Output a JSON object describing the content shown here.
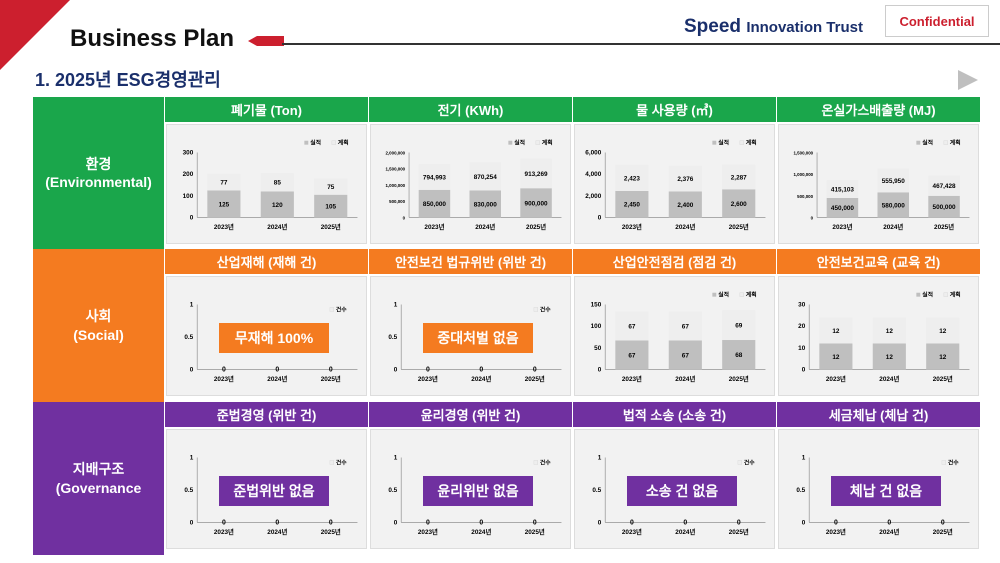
{
  "header": {
    "title": "Business Plan",
    "brand_main": "Speed",
    "brand_sub": "Innovation Trust",
    "confidential": "Confidential",
    "subtitle": "1. 2025년 ESG경영관리"
  },
  "colors": {
    "env": "#1aa64b",
    "soc": "#f47b20",
    "gov": "#7030a0",
    "actual": "#bfbfbf",
    "plan": "#eeeeee",
    "accent": "#cc1f2e"
  },
  "sections": [
    {
      "name": "환경",
      "en": "(Environmental)"
    },
    {
      "name": "사회",
      "en": "(Social)"
    },
    {
      "name": "지배구조",
      "en": "(Governance"
    }
  ],
  "headers": [
    [
      "폐기물 (Ton)",
      "전기 (KWh)",
      "물 사용량 (㎥)",
      "온실가스배출량  (MJ)"
    ],
    [
      "산업재해 (재해 건)",
      "안전보건 법규위반 (위반 건)",
      "산업안전점검 (점검 건)",
      "안전보건교육 (교육 건)"
    ],
    [
      "준법경영 (위반 건)",
      "윤리경영 (위반 건)",
      "법적 소송 (소송 건)",
      "세금체납 (체납 건)"
    ]
  ],
  "chart_data": [
    {
      "type": "bar",
      "stacked": true,
      "categories": [
        "2023년",
        "2024년",
        "2025년"
      ],
      "series": [
        {
          "name": "실적",
          "values": [
            125,
            120,
            105
          ],
          "labels": [
            "125",
            "120",
            "105"
          ]
        },
        {
          "name": "계획",
          "values": [
            77,
            85,
            75
          ],
          "labels": [
            "77",
            "85",
            "75"
          ]
        }
      ],
      "ylim": [
        0,
        300
      ],
      "yticks": [
        "0",
        "100",
        "200",
        "300"
      ],
      "legend": "top-right"
    },
    {
      "type": "bar",
      "stacked": true,
      "categories": [
        "2023년",
        "2024년",
        "2025년"
      ],
      "series": [
        {
          "name": "실적",
          "values": [
            850000,
            830000,
            900000
          ],
          "labels": [
            "850,000",
            "830,000",
            "900,000"
          ]
        },
        {
          "name": "계획",
          "values": [
            794993,
            870254,
            913269
          ],
          "labels": [
            "794,993",
            "870,254",
            "913,269"
          ]
        }
      ],
      "ylim": [
        0,
        2000000
      ],
      "yticks": [
        "0",
        "500,000",
        "1,000,000",
        "1,500,000",
        "2,000,000"
      ],
      "legend": "top-right"
    },
    {
      "type": "bar",
      "stacked": true,
      "categories": [
        "2023년",
        "2024년",
        "2025년"
      ],
      "series": [
        {
          "name": "실적",
          "values": [
            2450,
            2400,
            2600
          ],
          "labels": [
            "2,450",
            "2,400",
            "2,600"
          ]
        },
        {
          "name": "계획",
          "values": [
            2423,
            2376,
            2287
          ],
          "labels": [
            "2,423",
            "2,376",
            "2,287"
          ]
        }
      ],
      "ylim": [
        0,
        6000
      ],
      "yticks": [
        "0",
        "2,000",
        "4,000",
        "6,000"
      ],
      "legend": "top-right"
    },
    {
      "type": "bar",
      "stacked": true,
      "categories": [
        "2023년",
        "2024년",
        "2025년"
      ],
      "series": [
        {
          "name": "실적",
          "values": [
            450000,
            580000,
            500000
          ],
          "labels": [
            "450,000",
            "580,000",
            "500,000"
          ]
        },
        {
          "name": "계획",
          "values": [
            415103,
            555950,
            467428
          ],
          "labels": [
            "415,103",
            "555,950",
            "467,428"
          ]
        }
      ],
      "ylim": [
        0,
        1500000
      ],
      "yticks": [
        "0",
        "500,000",
        "1,000,000",
        "1,500,000"
      ],
      "legend": "top-right"
    },
    {
      "type": "bar",
      "categories": [
        "2023년",
        "2024년",
        "2025년"
      ],
      "series": [
        {
          "name": "건수",
          "values": [
            0,
            0,
            0
          ],
          "labels": [
            "0",
            "0",
            "0"
          ]
        }
      ],
      "ylim": [
        0,
        1
      ],
      "yticks": [
        "0",
        "0.5",
        "1"
      ],
      "legend": "top-right",
      "note": "무재해 100%"
    },
    {
      "type": "bar",
      "categories": [
        "2023년",
        "2024년",
        "2025년"
      ],
      "series": [
        {
          "name": "건수",
          "values": [
            0,
            0,
            0
          ],
          "labels": [
            "0",
            "0",
            "0"
          ]
        }
      ],
      "ylim": [
        0,
        1
      ],
      "yticks": [
        "0",
        "0.5",
        "1"
      ],
      "legend": "top-right",
      "note": "중대처벌 없음"
    },
    {
      "type": "bar",
      "stacked": true,
      "categories": [
        "2023년",
        "2024년",
        "2025년"
      ],
      "series": [
        {
          "name": "실적",
          "values": [
            67,
            67,
            68
          ],
          "labels": [
            "67",
            "67",
            "68"
          ]
        },
        {
          "name": "계획",
          "values": [
            67,
            67,
            69
          ],
          "labels": [
            "67",
            "67",
            "69"
          ]
        }
      ],
      "ylim": [
        0,
        150
      ],
      "yticks": [
        "0",
        "50",
        "100",
        "150"
      ],
      "legend": "top-right"
    },
    {
      "type": "bar",
      "stacked": true,
      "categories": [
        "2023년",
        "2024년",
        "2025년"
      ],
      "series": [
        {
          "name": "실적",
          "values": [
            12,
            12,
            12
          ],
          "labels": [
            "12",
            "12",
            "12"
          ]
        },
        {
          "name": "계획",
          "values": [
            12,
            12,
            12
          ],
          "labels": [
            "12",
            "12",
            "12"
          ]
        }
      ],
      "ylim": [
        0,
        30
      ],
      "yticks": [
        "0",
        "10",
        "20",
        "30"
      ],
      "legend": "top-right"
    },
    {
      "type": "bar",
      "categories": [
        "2023년",
        "2024년",
        "2025년"
      ],
      "series": [
        {
          "name": "건수",
          "values": [
            0,
            0,
            0
          ],
          "labels": [
            "0",
            "0",
            "0"
          ]
        }
      ],
      "ylim": [
        0,
        1
      ],
      "yticks": [
        "0",
        "0.5",
        "1"
      ],
      "legend": "top-right",
      "note": "준법위반 없음"
    },
    {
      "type": "bar",
      "categories": [
        "2023년",
        "2024년",
        "2025년"
      ],
      "series": [
        {
          "name": "건수",
          "values": [
            0,
            0,
            0
          ],
          "labels": [
            "0",
            "0",
            "0"
          ]
        }
      ],
      "ylim": [
        0,
        1
      ],
      "yticks": [
        "0",
        "0.5",
        "1"
      ],
      "legend": "top-right",
      "note": "윤리위반 없음"
    },
    {
      "type": "bar",
      "categories": [
        "2023년",
        "2024년",
        "2025년"
      ],
      "series": [
        {
          "name": "건수",
          "values": [
            0,
            0,
            0
          ],
          "labels": [
            "0",
            "0",
            "0"
          ]
        }
      ],
      "ylim": [
        0,
        1
      ],
      "yticks": [
        "0",
        "0.5",
        "1"
      ],
      "legend": "top-right",
      "note": "소송 건 없음"
    },
    {
      "type": "bar",
      "categories": [
        "2023년",
        "2024년",
        "2025년"
      ],
      "series": [
        {
          "name": "건수",
          "values": [
            0,
            0,
            0
          ],
          "labels": [
            "0",
            "0",
            "0"
          ]
        }
      ],
      "ylim": [
        0,
        1
      ],
      "yticks": [
        "0",
        "0.5",
        "1"
      ],
      "legend": "top-right",
      "note": "체납 건 없음"
    }
  ]
}
